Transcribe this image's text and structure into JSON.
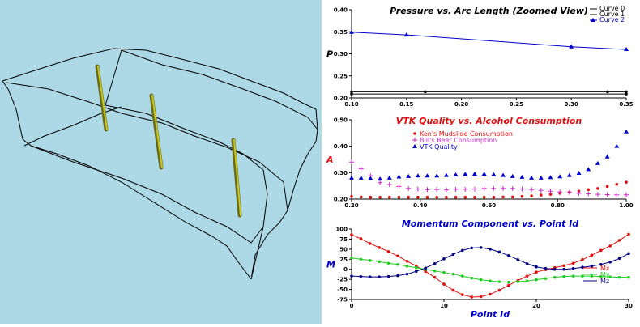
{
  "colors": {
    "left_bg": "#add8e6",
    "wire": "#000000",
    "streamline": "#6b6b1e",
    "highlight": "#c8c820",
    "blue": "#0000cc",
    "red": "#e01010",
    "magenta": "#cc22cc",
    "green": "#22cc22",
    "navy": "#000080"
  },
  "chart_data": [
    {
      "type": "line",
      "title": "Pressure vs. Arc Length (Zoomed View)",
      "xlabel": "",
      "ylabel": "P",
      "xlim": [
        0.1,
        0.35
      ],
      "ylim": [
        0.2,
        0.4
      ],
      "x_ticks": [
        "0.10",
        "0.15",
        "0.20",
        "0.25",
        "0.30",
        "0.35"
      ],
      "y_ticks": [
        "0.20",
        "0.25",
        "0.30",
        "0.35",
        "0.40"
      ],
      "legend_position": "top-right",
      "series": [
        {
          "name": "Curve 0",
          "color": "#000000",
          "marker": "dot",
          "x": [
            0.1,
            0.167,
            0.333,
            0.35
          ],
          "y": [
            0.214,
            0.214,
            0.214,
            0.214
          ]
        },
        {
          "name": "Curve 1",
          "color": "#000000",
          "marker": "dot",
          "x": [
            0.1,
            0.35
          ],
          "y": [
            0.209,
            0.209
          ]
        },
        {
          "name": "Curve 2",
          "color": "#0000cc",
          "marker": "triangle",
          "x": [
            0.1,
            0.15,
            0.3,
            0.35
          ],
          "y": [
            0.349,
            0.343,
            0.316,
            0.31
          ]
        }
      ]
    },
    {
      "type": "scatter",
      "title": "VTK Quality vs. Alcohol Consumption",
      "xlabel": "",
      "ylabel": "A",
      "xlim": [
        0.2,
        1.0
      ],
      "ylim": [
        0.2,
        0.5
      ],
      "x_ticks": [
        "0.20",
        "0.40",
        "0.60",
        "0.80",
        "1.00"
      ],
      "y_ticks": [
        "0.20",
        "0.30",
        "0.40",
        "0.50"
      ],
      "legend_position": "top-left",
      "x": [
        0.2,
        0.2276,
        0.2552,
        0.2828,
        0.3103,
        0.3379,
        0.3655,
        0.3931,
        0.4207,
        0.4483,
        0.4759,
        0.5034,
        0.531,
        0.5586,
        0.5862,
        0.6138,
        0.6414,
        0.669,
        0.6966,
        0.7241,
        0.7517,
        0.7793,
        0.8069,
        0.8345,
        0.8621,
        0.8897,
        0.9172,
        0.9448,
        0.9724,
        1.0
      ],
      "series": [
        {
          "name": "Ken's Mudslide Consumption",
          "color": "#e01010",
          "marker": "dot",
          "values": [
            0.21,
            0.208,
            0.207,
            0.207,
            0.207,
            0.207,
            0.207,
            0.207,
            0.207,
            0.207,
            0.207,
            0.207,
            0.207,
            0.207,
            0.207,
            0.207,
            0.208,
            0.208,
            0.21,
            0.212,
            0.215,
            0.218,
            0.222,
            0.226,
            0.23,
            0.236,
            0.24,
            0.248,
            0.256,
            0.264
          ]
        },
        {
          "name": "Bill's Beer Consumption",
          "color": "#cc22cc",
          "marker": "plus",
          "values": [
            0.34,
            0.315,
            0.288,
            0.262,
            0.255,
            0.248,
            0.24,
            0.238,
            0.236,
            0.236,
            0.235,
            0.237,
            0.237,
            0.238,
            0.24,
            0.24,
            0.24,
            0.24,
            0.238,
            0.236,
            0.233,
            0.23,
            0.227,
            0.225,
            0.222,
            0.22,
            0.218,
            0.217,
            0.216,
            0.216
          ]
        },
        {
          "name": "VTK Quality",
          "color": "#0000cc",
          "marker": "triangle",
          "values": [
            0.28,
            0.28,
            0.278,
            0.276,
            0.28,
            0.284,
            0.286,
            0.288,
            0.288,
            0.288,
            0.29,
            0.292,
            0.294,
            0.295,
            0.295,
            0.293,
            0.29,
            0.286,
            0.283,
            0.28,
            0.28,
            0.282,
            0.285,
            0.29,
            0.298,
            0.312,
            0.335,
            0.36,
            0.4,
            0.455
          ]
        }
      ]
    },
    {
      "type": "line",
      "title": "Momentum Component vs. Point Id",
      "xlabel": "Point Id",
      "ylabel": "M",
      "xlim": [
        0,
        30
      ],
      "ylim": [
        -75,
        100
      ],
      "x_ticks": [
        "0",
        "10",
        "20",
        "30"
      ],
      "y_ticks": [
        "100",
        "75",
        "50",
        "25",
        "0",
        "-25",
        "-50",
        "-75"
      ],
      "legend_position": "bottom-right",
      "x": [
        0,
        1,
        2,
        3,
        4,
        5,
        6,
        7,
        8,
        9,
        10,
        11,
        12,
        13,
        14,
        15,
        16,
        17,
        18,
        19,
        20,
        21,
        22,
        23,
        24,
        25,
        26,
        27,
        28,
        29,
        30
      ],
      "series": [
        {
          "name": "Mx",
          "color": "#e01010",
          "values": [
            86,
            76,
            64,
            54,
            44,
            33,
            20,
            8,
            -5,
            -20,
            -37,
            -52,
            -63,
            -69,
            -68,
            -62,
            -52,
            -40,
            -28,
            -17,
            -7,
            -1,
            4,
            9,
            15,
            24,
            35,
            47,
            58,
            72,
            87
          ]
        },
        {
          "name": "My",
          "color": "#22cc22",
          "values": [
            28,
            25,
            22,
            19,
            15,
            12,
            8,
            4,
            0,
            -4,
            -8,
            -12,
            -17,
            -22,
            -26,
            -29,
            -31,
            -32,
            -31,
            -29,
            -26,
            -23,
            -20,
            -18,
            -17,
            -17,
            -17,
            -18,
            -19,
            -20,
            -20
          ]
        },
        {
          "name": "Mz",
          "color": "#000080",
          "values": [
            -17,
            -18,
            -19,
            -19,
            -18,
            -16,
            -12,
            -5,
            3,
            14,
            26,
            37,
            47,
            53,
            54,
            50,
            43,
            34,
            24,
            14,
            6,
            2,
            0,
            0,
            2,
            5,
            8,
            12,
            18,
            27,
            39
          ]
        }
      ]
    }
  ]
}
